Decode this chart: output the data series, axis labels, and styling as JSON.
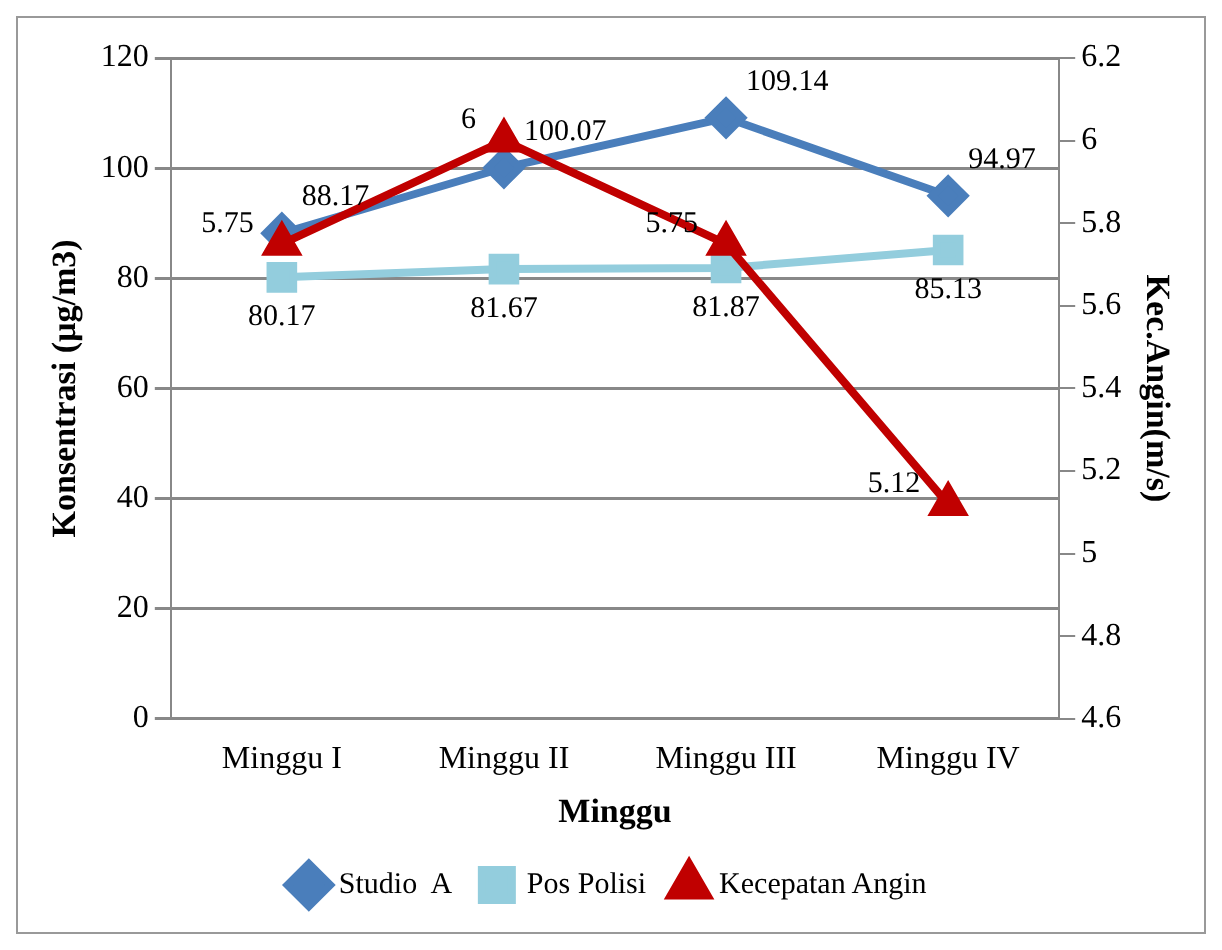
{
  "chart_data": {
    "type": "line",
    "xlabel": "Minggu",
    "ylabel": "Konsentrasi (µg/m3)",
    "y2label": "Kec.Angin(m/s)",
    "categories": [
      "Minggu I",
      "Minggu II",
      "Minggu III",
      "Minggu IV"
    ],
    "series": [
      {
        "name": "Studio  A",
        "color": "#4a7ebb",
        "marker": "diamond",
        "values": [
          88.17,
          100.07,
          109.14,
          94.97
        ]
      },
      {
        "name": "Pos Polisi",
        "color": "#93cddd",
        "marker": "square",
        "values": [
          80.17,
          81.67,
          81.87,
          85.13
        ]
      },
      {
        "name": "Kecepatan Angin",
        "color": "#c00000",
        "marker": "triangle",
        "axis": "y2",
        "values": [
          5.75,
          6,
          5.75,
          5.12
        ]
      }
    ],
    "ylim": [
      0,
      120
    ],
    "yticks": [
      0,
      20,
      40,
      60,
      80,
      100,
      120
    ],
    "y2lim": [
      4.6,
      6.2
    ],
    "y2ticks": [
      4.6,
      4.8,
      5,
      5.2,
      5.4,
      5.6,
      5.8,
      6,
      6.2
    ],
    "grid": "y",
    "legend": "bottom",
    "data_labels": true
  }
}
